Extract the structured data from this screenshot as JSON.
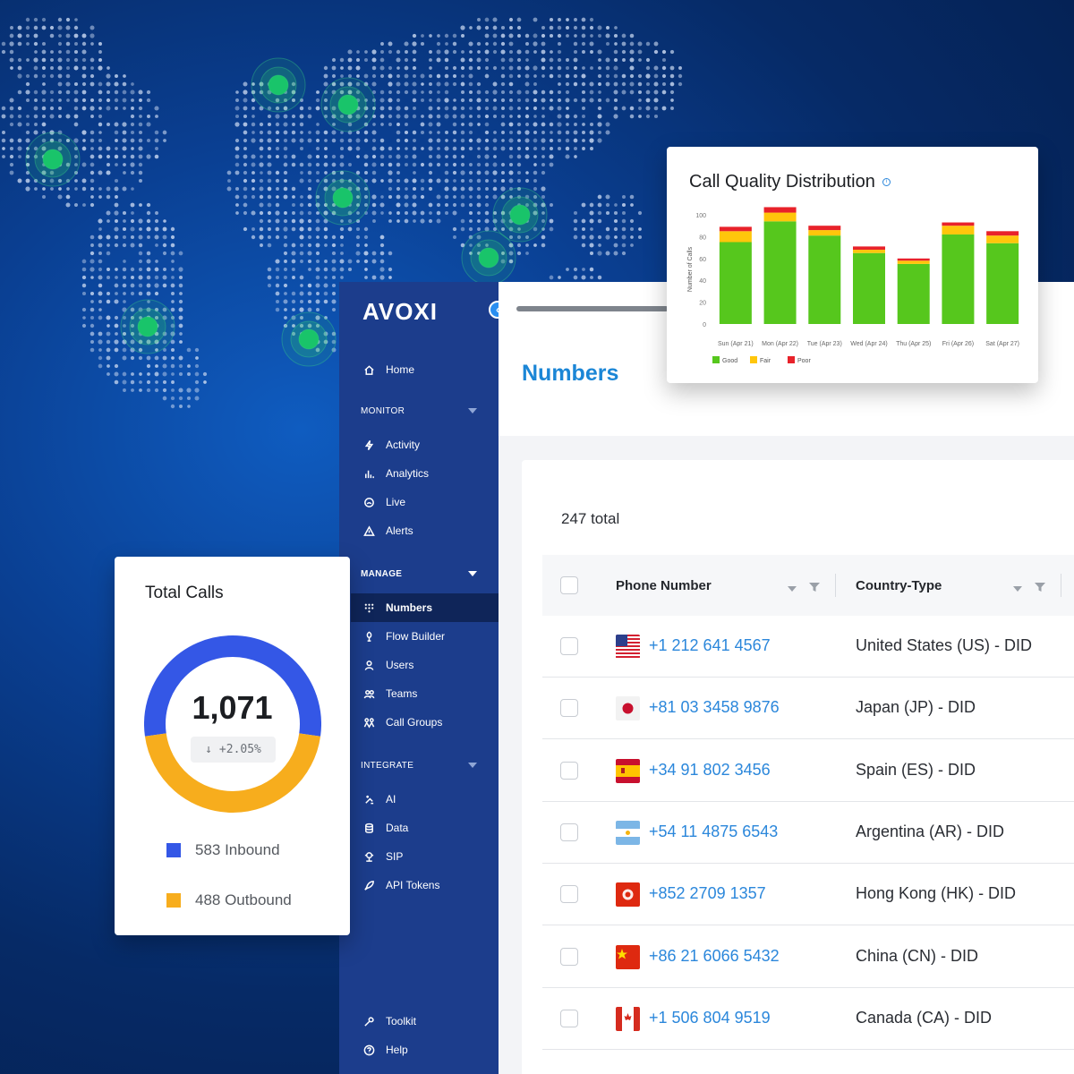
{
  "sidebar": {
    "logo": "AVOXI",
    "collapse_icon": "chevron-left-icon",
    "home": {
      "label": "Home",
      "icon": "home-icon"
    },
    "sections": [
      {
        "title": "MONITOR",
        "bold": false,
        "items": [
          {
            "label": "Activity",
            "icon": "bolt-icon"
          },
          {
            "label": "Analytics",
            "icon": "bar-chart-icon"
          },
          {
            "label": "Live",
            "icon": "live-icon"
          },
          {
            "label": "Alerts",
            "icon": "warning-icon"
          }
        ]
      },
      {
        "title": "MANAGE",
        "bold": true,
        "items": [
          {
            "label": "Numbers",
            "icon": "dialpad-icon",
            "active": true
          },
          {
            "label": "Flow Builder",
            "icon": "flow-icon"
          },
          {
            "label": "Users",
            "icon": "user-icon"
          },
          {
            "label": "Teams",
            "icon": "team-icon"
          },
          {
            "label": "Call Groups",
            "icon": "call-groups-icon"
          }
        ]
      },
      {
        "title": "INTEGRATE",
        "bold": false,
        "items": [
          {
            "label": "AI",
            "icon": "sparkle-icon"
          },
          {
            "label": "Data",
            "icon": "database-icon"
          },
          {
            "label": "SIP",
            "icon": "sip-icon"
          },
          {
            "label": "API Tokens",
            "icon": "rocket-icon"
          }
        ]
      }
    ],
    "footer": [
      {
        "label": "Toolkit",
        "icon": "wrench-icon"
      },
      {
        "label": "Help",
        "icon": "help-icon"
      }
    ]
  },
  "main": {
    "title": "Numbers",
    "total": "247 total",
    "columns": [
      "Phone Number",
      "Country-Type"
    ],
    "rows": [
      {
        "flag": "US",
        "phone": "+1 212 641 4567",
        "country_type": "United States (US) - DID"
      },
      {
        "flag": "JP",
        "phone": "+81 03 3458 9876",
        "country_type": "Japan (JP) - DID"
      },
      {
        "flag": "ES",
        "phone": "+34 91 802 3456",
        "country_type": "Spain (ES) - DID"
      },
      {
        "flag": "AR",
        "phone": "+54 11 4875 6543",
        "country_type": "Argentina (AR) - DID"
      },
      {
        "flag": "HK",
        "phone": "+852 2709 1357",
        "country_type": "Hong Kong (HK) - DID"
      },
      {
        "flag": "CN",
        "phone": "+86 21 6066 5432",
        "country_type": "China (CN) - DID"
      },
      {
        "flag": "CA",
        "phone": "+1 506 804 9519",
        "country_type": "Canada (CA) - DID"
      }
    ]
  },
  "total_calls": {
    "title": "Total Calls",
    "value": "1,071",
    "delta": "+2.05%",
    "delta_icon": "arrow-down-icon",
    "inbound": {
      "value": 583,
      "label": "583 Inbound",
      "color": "#3457e6"
    },
    "outbound": {
      "value": 488,
      "label": "488 Outbound",
      "color": "#f7ad1d"
    }
  },
  "colors": {
    "accent": "#1b86d6",
    "sidebar": "#1c3d8c",
    "good": "#56c71d",
    "fair": "#ffc60b",
    "poor": "#e8222a"
  },
  "chart_data": {
    "type": "bar",
    "stacked": true,
    "title": "Call Quality Distribution",
    "ylabel": "Number of Calls",
    "ylim": [
      0,
      100
    ],
    "yticks": [
      0,
      20,
      40,
      60,
      80,
      100
    ],
    "categories": [
      "Sun (Apr 21)",
      "Mon (Apr 22)",
      "Tue (Apr 23)",
      "Wed (Apr 24)",
      "Thu (Apr 25)",
      "Fri (Apr 26)",
      "Sat (Apr 27)"
    ],
    "series": [
      {
        "name": "Good",
        "color": "#56c71d",
        "values": [
          75,
          94,
          81,
          65,
          55,
          82,
          74
        ]
      },
      {
        "name": "Fair",
        "color": "#ffc60b",
        "values": [
          10,
          8,
          5,
          3,
          3,
          8,
          7
        ]
      },
      {
        "name": "Poor",
        "color": "#e8222a",
        "values": [
          4,
          5,
          4,
          3,
          2,
          3,
          4
        ]
      }
    ],
    "legend": "bottom-left",
    "grid": false
  }
}
